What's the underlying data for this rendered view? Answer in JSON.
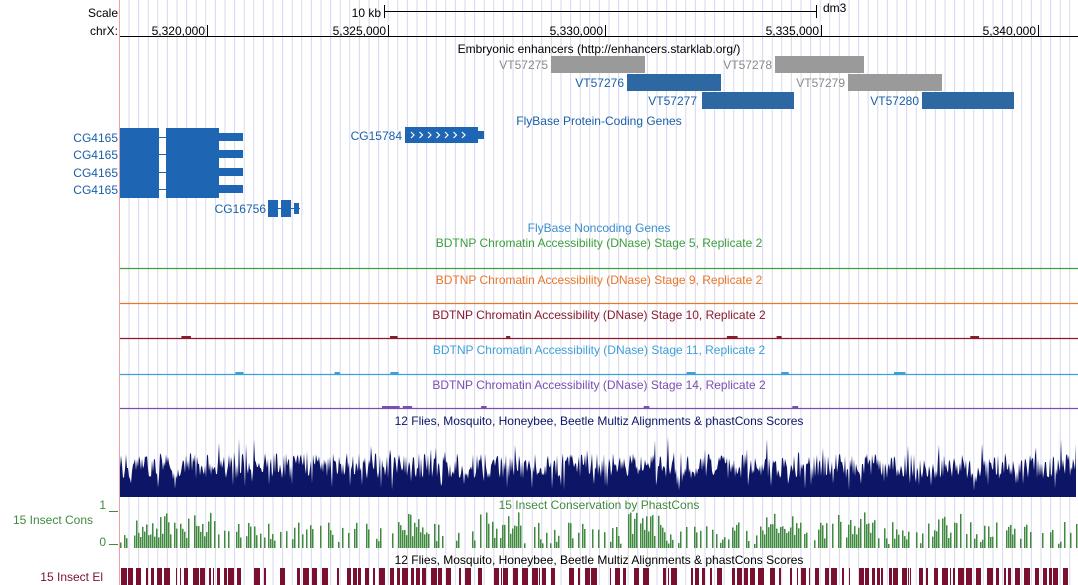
{
  "header": {
    "scale_label": "Scale",
    "scale_bar_text": "10 kb",
    "assembly": "dm3",
    "chrom_label": "chrX:",
    "ticks": [
      "5,320,000",
      "5,325,000",
      "5,330,000",
      "5,335,000",
      "5,340,000"
    ]
  },
  "tracks": {
    "enhancers": {
      "title": "Embryonic enhancers (http://enhancers.starklab.org/)",
      "items": [
        {
          "label": "VT57275",
          "shade": "gray"
        },
        {
          "label": "VT57276",
          "shade": "blue"
        },
        {
          "label": "VT57277",
          "shade": "blue"
        },
        {
          "label": "VT57278",
          "shade": "gray"
        },
        {
          "label": "VT57279",
          "shade": "gray"
        },
        {
          "label": "VT57280",
          "shade": "blue"
        }
      ]
    },
    "protein_coding": {
      "title": "FlyBase Protein-Coding Genes",
      "genes": [
        "CG4165",
        "CG4165",
        "CG4165",
        "CG4165",
        "CG15784",
        "CG16756"
      ]
    },
    "noncoding": {
      "title": "FlyBase Noncoding Genes"
    },
    "dnase": [
      {
        "title": "BDTNP Chromatin Accessibility (DNase) Stage 5, Replicate 2",
        "color": "#3c9e3c"
      },
      {
        "title": "BDTNP Chromatin Accessibility (DNase) Stage 9, Replicate 2",
        "color": "#e8762c"
      },
      {
        "title": "BDTNP Chromatin Accessibility (DNase) Stage 10, Replicate 2",
        "color": "#8b1a2b"
      },
      {
        "title": "BDTNP Chromatin Accessibility (DNase) Stage 11, Replicate 2",
        "color": "#3ea0d8"
      },
      {
        "title": "BDTNP Chromatin Accessibility (DNase) Stage 14, Replicate 2",
        "color": "#7a4fb0"
      }
    ],
    "multiz": {
      "title": "12 Flies, Mosquito, Honeybee, Beetle Multiz Alignments & phastCons Scores",
      "color": "#0d1566"
    },
    "cons": {
      "title": "15 Insect Conservation by PhastCons",
      "side_label": "15 Insect Cons",
      "ymax": "1",
      "ymin": "0",
      "color": "#3f8a3f"
    },
    "elements": {
      "title": "12 Flies, Mosquito, Honeybee, Beetle Multiz Alignments & phastCons Scores",
      "side_label": "15 Insect El",
      "color": "#7a1030"
    }
  },
  "colors": {
    "gene_blue": "#1e66b4",
    "label_blue": "#1a5fa8",
    "enh_gray": "#9a9a9a",
    "enh_blue": "#2e68a2",
    "grid": "#d8d8ec",
    "left_border": "#f0a0a0"
  }
}
